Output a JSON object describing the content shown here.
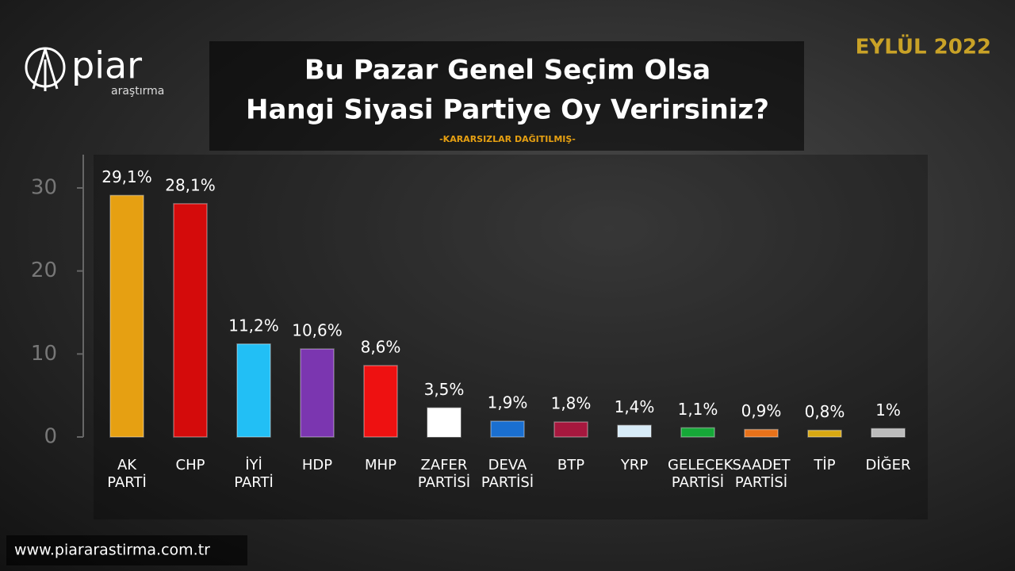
{
  "chart_data": {
    "type": "bar",
    "title": [
      "Bu Pazar Genel Seçim Olsa",
      "Hangi Siyasi Partiye Oy Verirsiniz?"
    ],
    "subtitle": "-KARARSIZLAR DAĞITILMIŞ-",
    "date": "EYLÜL 2022",
    "logo": {
      "name": "piar",
      "tagline": "araştırma"
    },
    "website": "www.piararastirma.com.tr",
    "categories": [
      "AK PARTİ",
      "CHP",
      "İYİ PARTİ",
      "HDP",
      "MHP",
      "ZAFER PARTİSİ",
      "DEVA PARTİSİ",
      "BTP",
      "YRP",
      "GELECEK PARTİSİ",
      "SAADET PARTİSİ",
      "TİP",
      "DİĞER"
    ],
    "values": [
      29.1,
      28.1,
      11.2,
      10.6,
      8.6,
      3.5,
      1.9,
      1.8,
      1.4,
      1.1,
      0.9,
      0.8,
      1
    ],
    "value_labels": [
      "29,1%",
      "28,1%",
      "11,2%",
      "10,6%",
      "8,6%",
      "3,5%",
      "1,9%",
      "1,8%",
      "1,4%",
      "1,1%",
      "0,9%",
      "0,8%",
      "1%"
    ],
    "colors": [
      "#e6a012",
      "#d40b0b",
      "#22bff5",
      "#7b36b0",
      "#ee1111",
      "#ffffff",
      "#1a6fd0",
      "#a6183e",
      "#d8ecf8",
      "#16a838",
      "#e8721a",
      "#d8a812",
      "#bcbcbc"
    ],
    "ylim": [
      0,
      30
    ],
    "yticks": [
      0,
      10,
      20,
      30
    ]
  }
}
